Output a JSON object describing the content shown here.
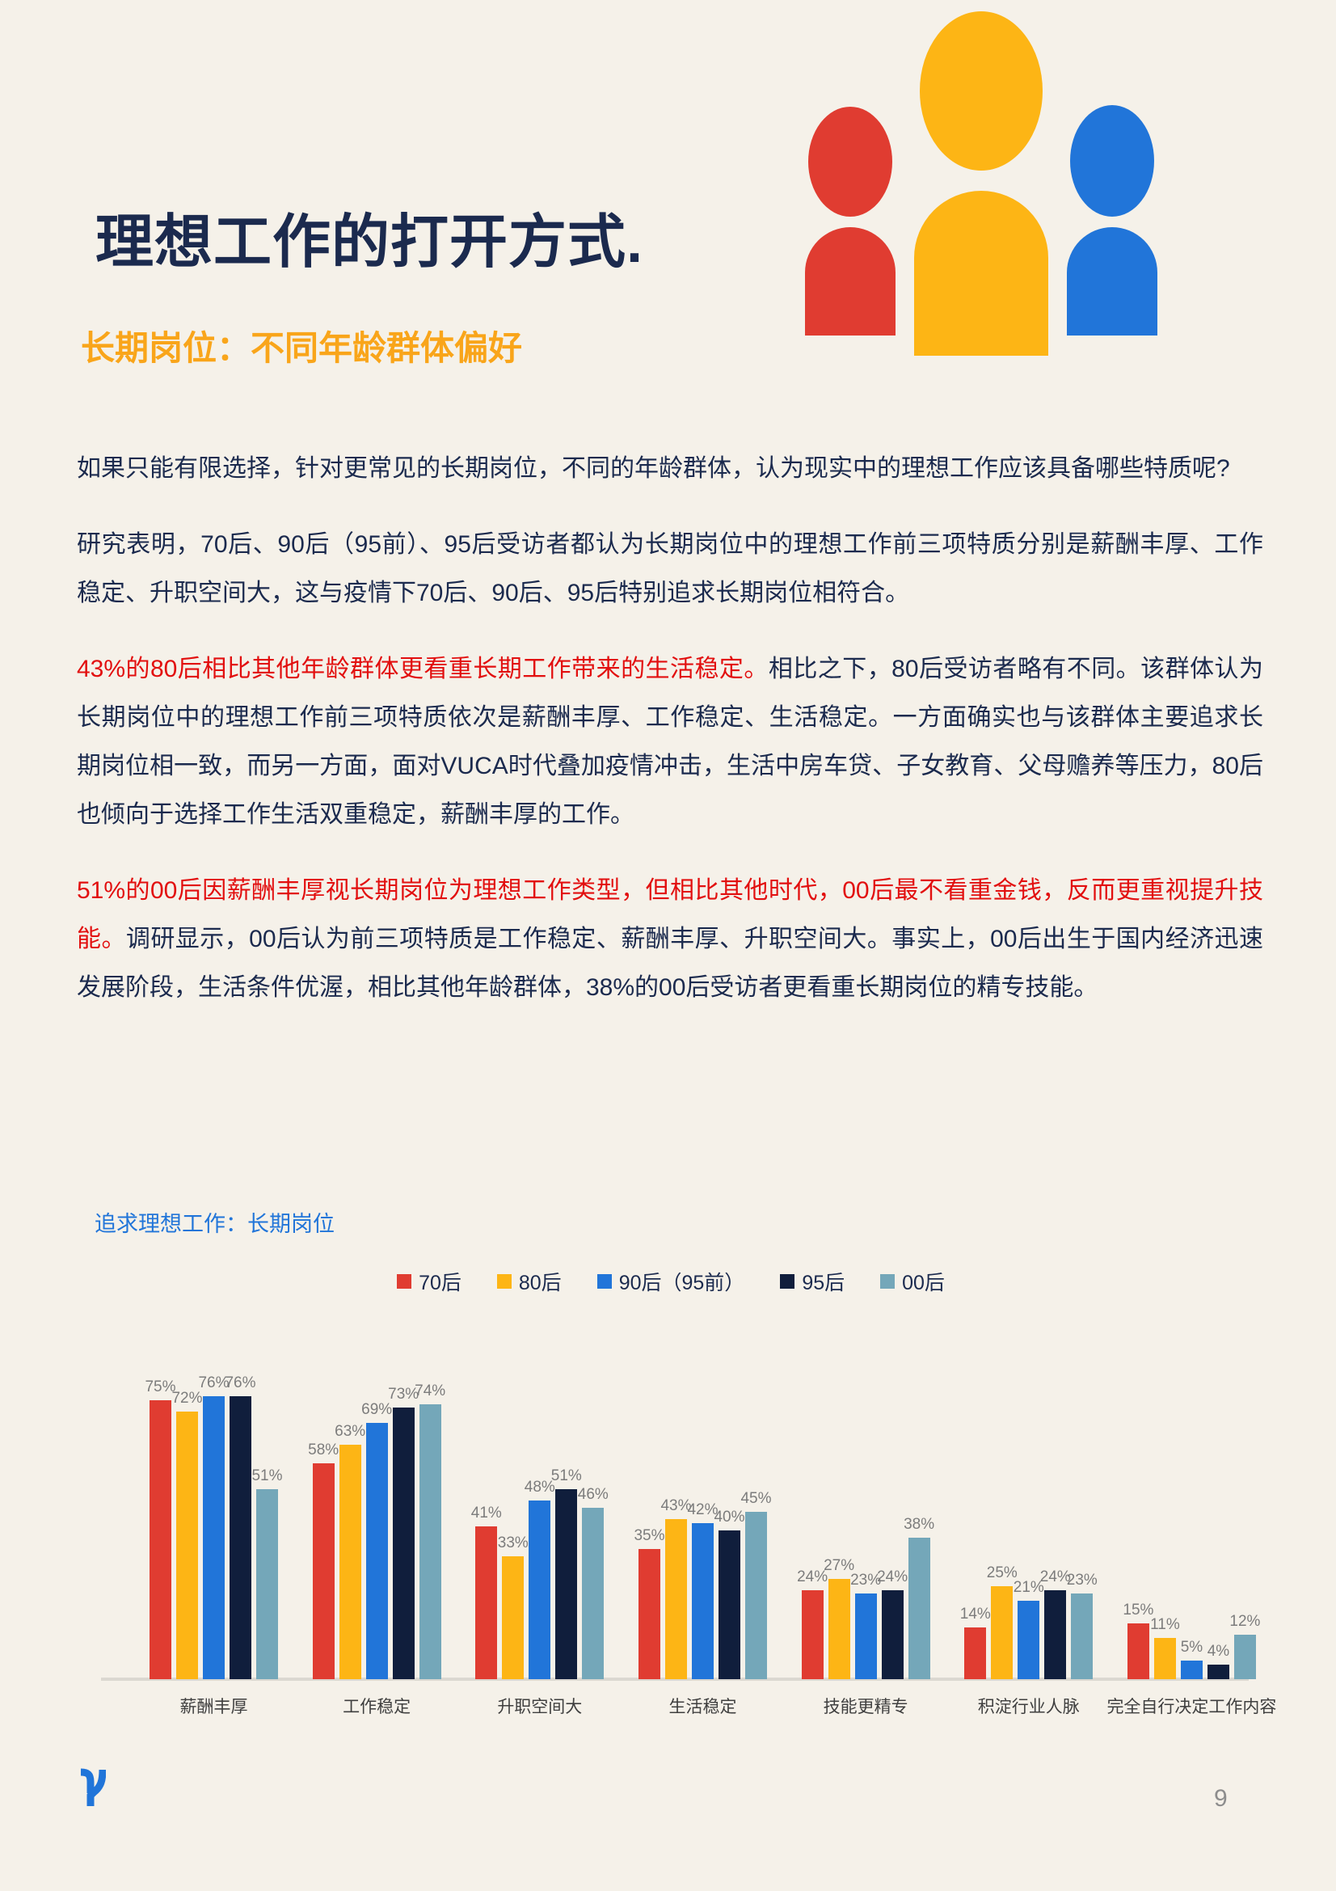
{
  "page": {
    "title": "理想工作的打开方式.",
    "subtitle": "长期岗位：不同年龄群体偏好",
    "page_number": "9"
  },
  "paragraphs": [
    {
      "text": "如果只能有限选择，针对更常见的长期岗位，不同的年龄群体，认为现实中的理想工作应该具备哪些特质呢?"
    },
    {
      "text": "研究表明，70后、90后（95前）、95后受访者都认为长期岗位中的理想工作前三项特质分别是薪酬丰厚、工作稳定、升职空间大，这与疫情下70后、90后、95后特别追求长期岗位相符合。"
    },
    {
      "highlight": "43%的80后相比其他年龄群体更看重长期工作带来的生活稳定。",
      "text": "相比之下，80后受访者略有不同。该群体认为长期岗位中的理想工作前三项特质依次是薪酬丰厚、工作稳定、生活稳定。一方面确实也与该群体主要追求长期岗位相一致，而另一方面，面对VUCA时代叠加疫情冲击，生活中房车贷、子女教育、父母赡养等压力，80后也倾向于选择工作生活双重稳定，薪酬丰厚的工作。"
    },
    {
      "highlight": "51%的00后因薪酬丰厚视长期岗位为理想工作类型，但相比其他时代，00后最不看重金钱，反而更重视提升技能。",
      "text": "调研显示，00后认为前三项特质是工作稳定、薪酬丰厚、升职空间大。事实上，00后出生于国内经济迅速发展阶段，生活条件优渥，相比其他年龄群体，38%的00后受访者更看重长期岗位的精专技能。"
    }
  ],
  "chart_data": {
    "type": "bar",
    "title": "追求理想工作：长期岗位",
    "categories": [
      "薪酬丰厚",
      "工作稳定",
      "升职空间大",
      "生活稳定",
      "技能更精专",
      "积淀行业人脉",
      "完全自行决定工作内容"
    ],
    "series": [
      {
        "name": "70后",
        "color": "#E03C31",
        "values": [
          75,
          58,
          41,
          35,
          24,
          14,
          15
        ]
      },
      {
        "name": "80后",
        "color": "#FDB515",
        "values": [
          72,
          63,
          33,
          43,
          27,
          25,
          11
        ]
      },
      {
        "name": "90后（95前）",
        "color": "#2175D9",
        "values": [
          76,
          69,
          48,
          42,
          23,
          21,
          5
        ]
      },
      {
        "name": "95后",
        "color": "#101E3C",
        "values": [
          76,
          73,
          51,
          40,
          24,
          24,
          4
        ]
      },
      {
        "name": "00后",
        "color": "#74A7B9",
        "values": [
          51,
          74,
          46,
          45,
          38,
          23,
          12
        ]
      }
    ],
    "value_suffix": "%",
    "ylim": [
      0,
      80
    ],
    "grid": false,
    "legend_position": "top"
  },
  "colors": {
    "red": "#E03C31",
    "yellow": "#FDB515",
    "blue": "#2175D9",
    "navy": "#101E3C",
    "teal": "#74A7B9",
    "text_navy": "#1B2A4E",
    "accent_red_text": "#E20F0F",
    "orange_heading": "#F9A51A",
    "background": "#F5F1E9"
  }
}
